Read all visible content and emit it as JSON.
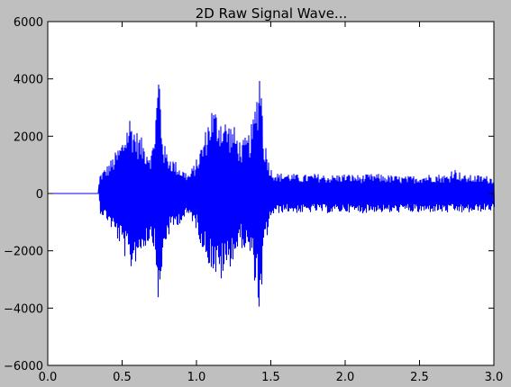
{
  "chart_data": {
    "type": "line",
    "title": "2D Raw Signal Wave...",
    "xlabel": "",
    "ylabel": "",
    "xlim": [
      0.0,
      3.0
    ],
    "ylim": [
      -6000,
      6000
    ],
    "x_ticks": [
      0.0,
      0.5,
      1.0,
      1.5,
      2.0,
      2.5,
      3.0
    ],
    "x_tick_labels": [
      "0.0",
      "0.5",
      "1.0",
      "1.5",
      "2.0",
      "2.5",
      "3.0"
    ],
    "y_ticks": [
      -6000,
      -4000,
      -2000,
      0,
      2000,
      4000,
      6000
    ],
    "y_tick_labels": [
      "−6000",
      "−4000",
      "−2000",
      "0",
      "2000",
      "4000",
      "6000"
    ],
    "grid": false,
    "legend": "none",
    "series": [
      {
        "color": "#0000ff",
        "envelope": {
          "x": [
            0.0,
            0.34,
            0.35,
            0.4,
            0.45,
            0.5,
            0.55,
            0.6,
            0.65,
            0.7,
            0.72,
            0.74,
            0.75,
            0.76,
            0.78,
            0.8,
            0.85,
            0.9,
            0.95,
            1.0,
            1.05,
            1.1,
            1.15,
            1.2,
            1.25,
            1.3,
            1.35,
            1.38,
            1.41,
            1.43,
            1.45,
            1.5,
            1.55,
            1.6,
            1.7,
            1.8,
            1.9,
            2.0,
            2.1,
            2.2,
            2.3,
            2.4,
            2.5,
            2.6,
            2.7,
            2.72,
            2.8,
            2.9,
            3.0
          ],
          "upper": [
            0,
            0,
            700,
            1000,
            1400,
            1900,
            2800,
            2200,
            1800,
            1500,
            2500,
            4000,
            4800,
            3000,
            1800,
            1500,
            1200,
            900,
            700,
            1200,
            2000,
            3100,
            2900,
            2600,
            2400,
            1800,
            2100,
            2600,
            3800,
            5000,
            2100,
            900,
            700,
            750,
            650,
            700,
            650,
            700,
            650,
            700,
            650,
            600,
            650,
            700,
            650,
            950,
            650,
            650,
            600
          ],
          "lower": [
            0,
            0,
            -700,
            -1000,
            -1500,
            -2000,
            -2800,
            -2300,
            -1900,
            -1600,
            -2400,
            -3800,
            -4900,
            -3200,
            -2000,
            -1600,
            -1200,
            -1000,
            -800,
            -1300,
            -2200,
            -2700,
            -3200,
            -2800,
            -2300,
            -1900,
            -2200,
            -2800,
            -3800,
            -4800,
            -2100,
            -800,
            -700,
            -650,
            -700,
            -650,
            -700,
            -650,
            -700,
            -650,
            -700,
            -650,
            -700,
            -650,
            -700,
            -650,
            -700,
            -650,
            -600
          ]
        }
      }
    ]
  }
}
